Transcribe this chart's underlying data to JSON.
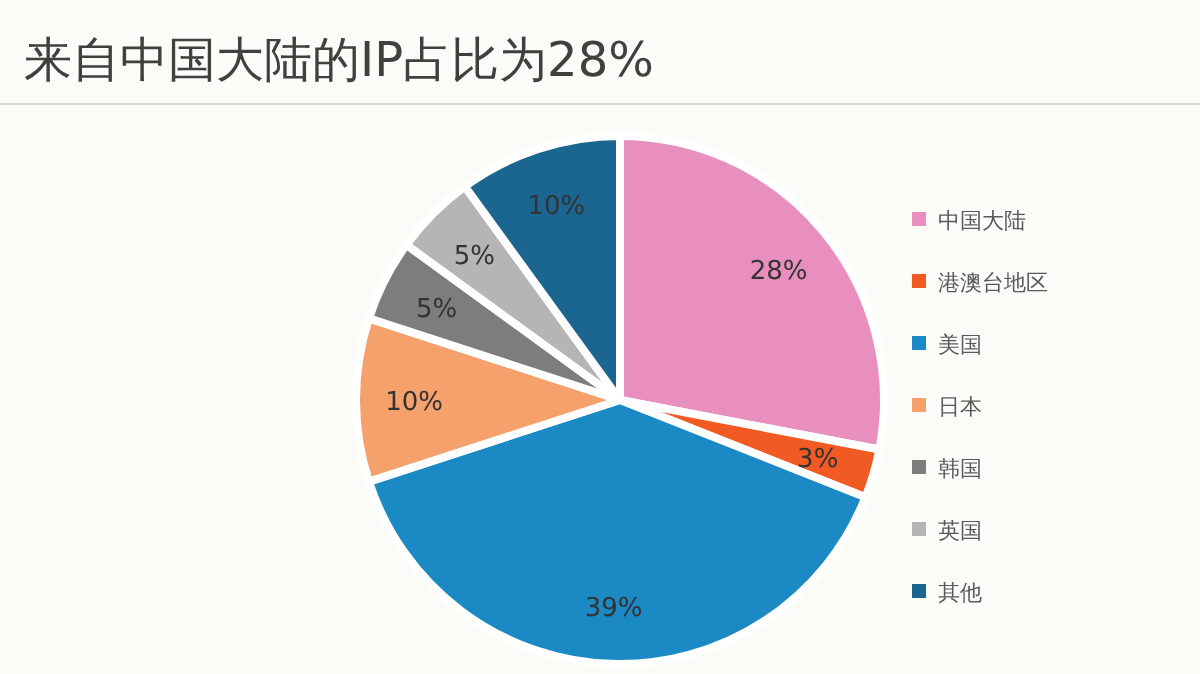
{
  "chart_data": {
    "type": "pie",
    "title": "来自中国大陆的IP占比为28%",
    "categories": [
      "中国大陆",
      "港澳台地区",
      "美国",
      "日本",
      "韩国",
      "英国",
      "其他"
    ],
    "values": [
      28,
      3,
      39,
      10,
      5,
      5,
      10
    ],
    "colors": [
      "#e98fbf",
      "#f15a22",
      "#1b8ac4",
      "#f6a06c",
      "#7d7d7d",
      "#b5b5b5",
      "#1a6690"
    ],
    "value_labels": [
      "28%",
      "3%",
      "39%",
      "10%",
      "5%",
      "5%",
      "10%"
    ],
    "legend": "right"
  }
}
